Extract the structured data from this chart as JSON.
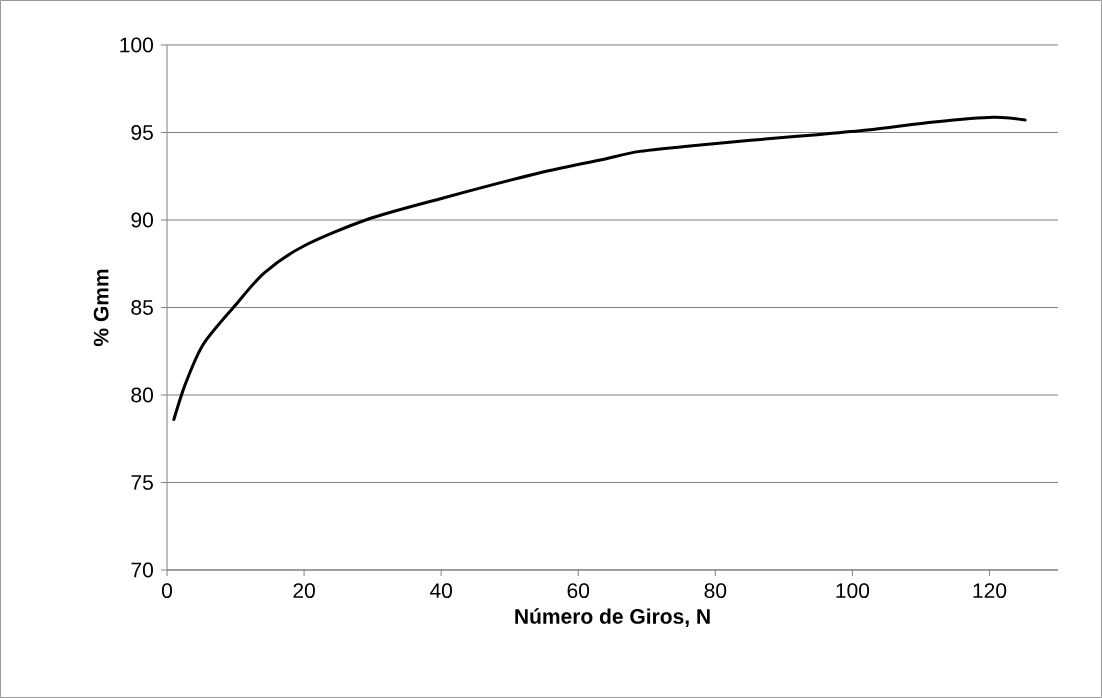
{
  "chart_data": {
    "type": "line",
    "xlabel": "Número de Giros, N",
    "ylabel": "% Gmm",
    "x": [
      1,
      2.7,
      5.3,
      10,
      14.2,
      19.9,
      29.3,
      40.3,
      53.4,
      63.2,
      69,
      77.8,
      92.4,
      102.2,
      111.9,
      120.6,
      125.2
    ],
    "series": [
      {
        "color": "#000000",
        "values": [
          78.6,
          80.65,
          82.9,
          85.14,
          86.98,
          88.5,
          90.04,
          91.26,
          92.6,
          93.43,
          93.92,
          94.29,
          94.8,
          95.14,
          95.6,
          95.87,
          95.71
        ]
      }
    ],
    "xlim": [
      0,
      130
    ],
    "xticks": [
      0,
      20,
      40,
      60,
      80,
      100,
      120
    ],
    "ylim": [
      70,
      100
    ],
    "yticks": [
      70,
      75,
      80,
      85,
      90,
      95,
      100
    ],
    "grid": "y"
  }
}
